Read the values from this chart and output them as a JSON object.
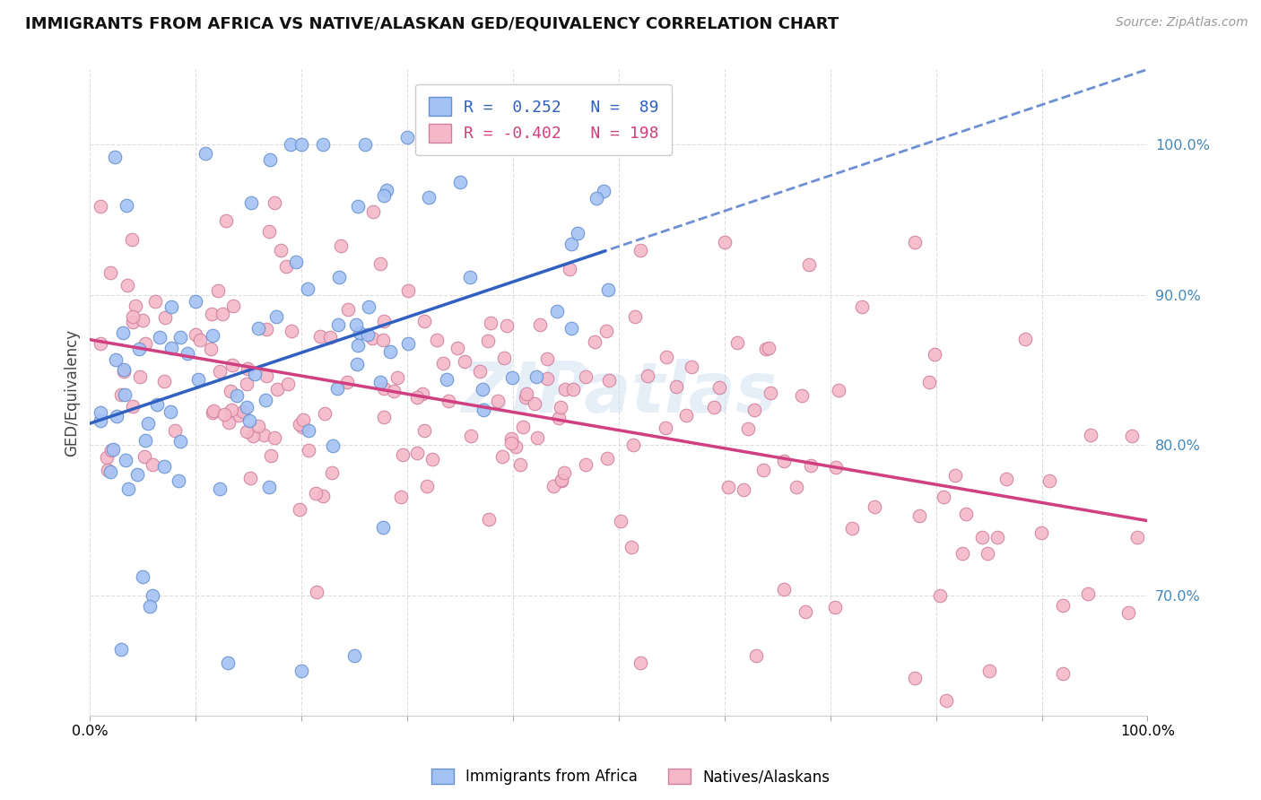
{
  "title": "IMMIGRANTS FROM AFRICA VS NATIVE/ALASKAN GED/EQUIVALENCY CORRELATION CHART",
  "source": "Source: ZipAtlas.com",
  "ylabel": "GED/Equivalency",
  "legend_label1": "Immigrants from Africa",
  "legend_label2": "Natives/Alaskans",
  "r1": 0.252,
  "n1": 89,
  "r2": -0.402,
  "n2": 198,
  "color_blue": "#a4c2f4",
  "color_pink": "#f4b8c8",
  "color_blue_edge": "#6690d0",
  "color_pink_edge": "#d080a0",
  "color_blue_line": "#3060c0",
  "color_pink_line": "#d04080",
  "xlim": [
    0.0,
    1.0
  ],
  "ylim": [
    0.62,
    1.05
  ],
  "yticks": [
    0.7,
    0.8,
    0.9,
    1.0
  ],
  "ytick_labels": [
    "70.0%",
    "80.0%",
    "90.0%",
    "100.0%"
  ],
  "watermark": "ZIPatlas"
}
